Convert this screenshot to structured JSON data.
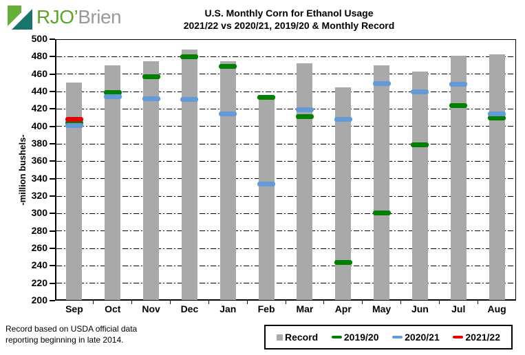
{
  "logo": {
    "text_primary": "RJO’",
    "text_secondary": "Brien",
    "brand_green": "#5ca529",
    "brand_teal": "#17756b",
    "brand_gray": "#9a9a9a"
  },
  "title": {
    "line1": "U.S. Monthly Corn for Ethanol Usage",
    "line2": "2021/22 vs 2020/21, 2019/20 & Monthly Record"
  },
  "y_axis": {
    "label": "-million bushels-"
  },
  "footnote": {
    "line1": "Record based on USDA official data",
    "line2": "reporting beginning in late 2014."
  },
  "legend": {
    "items": [
      {
        "key": "record",
        "label": "Record",
        "color": "#a9a9a9",
        "shape": "square"
      },
      {
        "key": "2019-20",
        "label": "2019/20",
        "color": "#008000",
        "shape": "dash"
      },
      {
        "key": "2020-21",
        "label": "2020/21",
        "color": "#649ad8",
        "shape": "dash"
      },
      {
        "key": "2021-22",
        "label": "2021/22",
        "color": "#e60000",
        "shape": "dash"
      }
    ]
  },
  "chart_data": {
    "type": "bar",
    "title": "U.S. Monthly Corn for Ethanol Usage 2021/22 vs 2020/21, 2019/20 & Monthly Record",
    "xlabel": "",
    "ylabel": "-million bushels-",
    "ylim": [
      200,
      500
    ],
    "ytick_step": 20,
    "grid": "horizontal-dashed",
    "legend_position": "bottom-right",
    "categories": [
      "Sep",
      "Oct",
      "Nov",
      "Dec",
      "Jan",
      "Feb",
      "Mar",
      "Apr",
      "May",
      "Jun",
      "Jul",
      "Aug"
    ],
    "series": [
      {
        "name": "Record",
        "render": "bar",
        "color": "#a9a9a9",
        "values": [
          450,
          470,
          475,
          488,
          475,
          434,
          472,
          445,
          470,
          463,
          481,
          483
        ]
      },
      {
        "name": "2019/20",
        "render": "tick",
        "color": "#008000",
        "values": [
          404,
          439,
          457,
          480,
          469,
          433,
          411,
          244,
          301,
          379,
          424,
          410
        ]
      },
      {
        "name": "2020/21",
        "render": "tick",
        "color": "#649ad8",
        "values": [
          401,
          434,
          432,
          431,
          414,
          334,
          419,
          408,
          449,
          440,
          448,
          414
        ]
      },
      {
        "name": "2021/22",
        "render": "tick",
        "color": "#e60000",
        "values": [
          408,
          null,
          null,
          null,
          null,
          null,
          null,
          null,
          null,
          null,
          null,
          null
        ]
      }
    ]
  }
}
